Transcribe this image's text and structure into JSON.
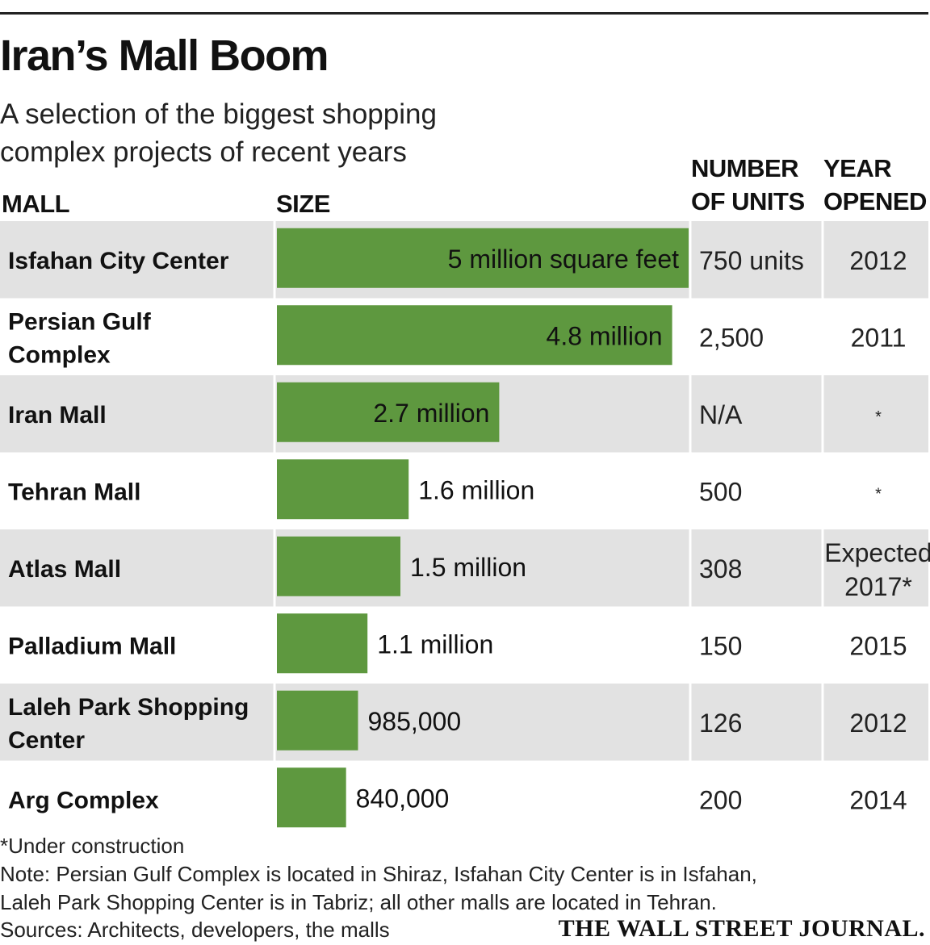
{
  "title": "Iran’s Mall Boom",
  "subtitle": "A selection of the biggest shopping complex projects of recent years",
  "headers": {
    "mall": "MALL",
    "size": "SIZE",
    "units_line1": "NUMBER",
    "units_line2": "OF UNITS",
    "year_line1": "YEAR",
    "year_line2": "OPENED"
  },
  "colors": {
    "bar": "#5e983f",
    "row_shade": "#e2e2e2",
    "divider": "#ffffff"
  },
  "chart_data": {
    "type": "bar",
    "orientation": "horizontal",
    "unit": "square feet",
    "categories": [
      "Isfahan City Center",
      "Persian Gulf Complex",
      "Iran Mall",
      "Tehran Mall",
      "Atlas Mall",
      "Palladium Mall",
      "Laleh Park Shopping Center",
      "Arg Complex"
    ],
    "category_lines": [
      [
        "Isfahan City Center"
      ],
      [
        "Persian Gulf",
        "Complex"
      ],
      [
        "Iran Mall"
      ],
      [
        "Tehran Mall"
      ],
      [
        "Atlas Mall"
      ],
      [
        "Palladium Mall"
      ],
      [
        "Laleh Park Shopping",
        "Center"
      ],
      [
        "Arg Complex"
      ]
    ],
    "values": [
      5000000,
      4800000,
      2700000,
      1600000,
      1500000,
      1100000,
      985000,
      840000
    ],
    "value_labels": [
      "5 million square feet",
      "4.8 million",
      "2.7 million",
      "1.6 million",
      "1.5 million",
      "1.1 million",
      "985,000",
      "840,000"
    ],
    "xlim": [
      0,
      5000000
    ],
    "units": [
      "750 units",
      "2,500",
      "N/A",
      "500",
      "308",
      "150",
      "126",
      "200"
    ],
    "year_opened": [
      [
        "2012"
      ],
      [
        "2011"
      ],
      [
        "*"
      ],
      [
        "*"
      ],
      [
        "Expected",
        "2017*"
      ],
      [
        "2015"
      ],
      [
        "2012"
      ],
      [
        "2014"
      ]
    ]
  },
  "notes": {
    "asterisk": "*Under construction",
    "note_line1": "Note: Persian Gulf Complex is located in Shiraz, Isfahan City Center is in Isfahan,",
    "note_line2": "Laleh Park Shopping Center is in Tabriz; all other malls are located in Tehran.",
    "sources": "Sources: Architects, developers, the malls"
  },
  "credit": "THE WALL STREET JOURNAL."
}
